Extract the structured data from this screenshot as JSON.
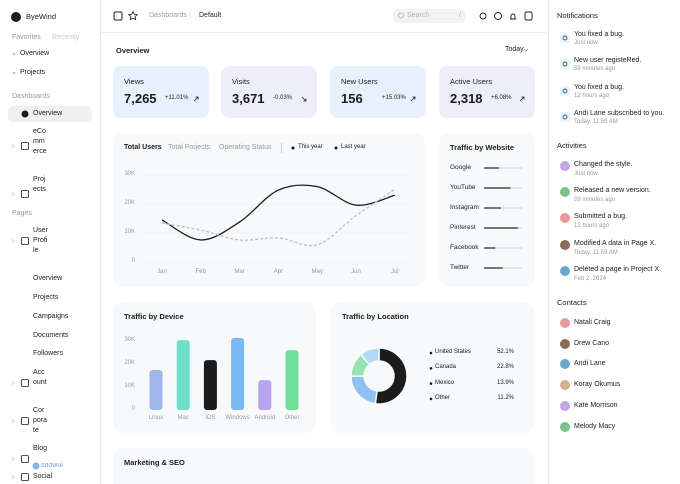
{
  "sidebar": {
    "brand": "ByeWind",
    "tabs": [
      "Favorites",
      "Recently"
    ],
    "favorites": [
      "Overview",
      "Projects"
    ],
    "dashboards_heading": "Dashboards",
    "dashboards": [
      "Overview",
      "eCommerce",
      "Projects"
    ],
    "pages_heading": "Pages",
    "pages": [
      "User Profile",
      "Overview",
      "Projects",
      "Campaigns",
      "Documents",
      "Followers",
      "Account",
      "Corporate",
      "Blog",
      "Social"
    ],
    "watermark": "snowui"
  },
  "topbar": {
    "breadcrumb": [
      "Dashboards",
      "Default"
    ],
    "separator": "/",
    "search": "Search",
    "shortcut": "/"
  },
  "overview": {
    "title": "Overview",
    "period": "Today",
    "stats": [
      {
        "label": "Views",
        "value": "7,265",
        "change": "+11.01%"
      },
      {
        "label": "Visits",
        "value": "3,671",
        "change": "-0.03%"
      },
      {
        "label": "New Users",
        "value": "156",
        "change": "+15.03%"
      },
      {
        "label": "Active Users",
        "value": "2,318",
        "change": "+6.08%"
      }
    ]
  },
  "total_users": {
    "type": "line",
    "tabs": [
      "Total Users",
      "Total Projects",
      "Operating Status"
    ],
    "categories": [
      "Jan",
      "Feb",
      "Mar",
      "Apr",
      "May",
      "Jun",
      "Jul"
    ],
    "series": [
      {
        "name": "This year",
        "color": "#1c1c1c",
        "values": [
          14500,
          7600,
          13800,
          24800,
          26000,
          19600,
          23000
        ]
      },
      {
        "name": "Last year",
        "color": "#a8c5da",
        "values": [
          13400,
          11000,
          7600,
          8300,
          5900,
          16000,
          25000
        ]
      }
    ],
    "ylim": [
      0,
      30000
    ],
    "yticks": [
      0,
      {
        "value": 10000,
        "label": "10K"
      },
      {
        "value": 20000,
        "label": "20K"
      },
      {
        "value": 30000,
        "label": "30K"
      }
    ]
  },
  "traffic_by_website": {
    "type": "bar",
    "title": "Traffic by Website",
    "categories": [
      "Google",
      "YouTube",
      "Instagram",
      "Pinterest",
      "Facebook",
      "Twitter"
    ],
    "values": [
      40,
      70,
      45,
      90,
      30,
      50
    ],
    "xlim": [
      0,
      100
    ]
  },
  "traffic_by_device": {
    "type": "bar",
    "title": "Traffic by Device",
    "categories": [
      "Linux",
      "Mac",
      "iOS",
      "Windows",
      "Android",
      "Other"
    ],
    "values": [
      17400,
      30400,
      21700,
      31300,
      13000,
      26000
    ],
    "colors": [
      "#9fb6ea",
      "#6fe0c7",
      "#1c1c1c",
      "#7ab8f3",
      "#b7a4ef",
      "#71dd9a"
    ],
    "ylim": [
      0,
      30000
    ],
    "yticks": [
      0,
      {
        "value": 10000,
        "label": "10K"
      },
      {
        "value": 20000,
        "label": "20K"
      },
      {
        "value": 30000,
        "label": "30K"
      }
    ]
  },
  "traffic_by_location": {
    "type": "pie",
    "title": "Traffic by Location",
    "categories": [
      "United States",
      "Canada",
      "Mexico",
      "Other"
    ],
    "values": [
      52.1,
      22.8,
      13.9,
      11.2
    ],
    "value_labels": [
      "52.1%",
      "22.8%",
      "13.9%",
      "11.2%"
    ],
    "colors": [
      "#1c1c1c",
      "#92bff4",
      "#95e3b3",
      "#b1d8f5"
    ]
  },
  "marketing_seo": {
    "title": "Marketing & SEO"
  },
  "notifications": {
    "title": "Notifications",
    "items": [
      {
        "text": "You fixed a bug.",
        "time": "Just now"
      },
      {
        "text": "New user registeRed.",
        "time": "59 minutes ago"
      },
      {
        "text": "You fixed a bug.",
        "time": "12 hours ago"
      },
      {
        "text": "Andi Lane subscribed to you.",
        "time": "Today, 11:59 AM"
      }
    ]
  },
  "activities": {
    "title": "Activities",
    "items": [
      {
        "text": "Changed the style.",
        "time": "Just now"
      },
      {
        "text": "Released a new version.",
        "time": "59 minutes ago"
      },
      {
        "text": "Submitted a bug.",
        "time": "12 hours ago"
      },
      {
        "text": "Modified A data in Page X.",
        "time": "Today, 11:59 AM"
      },
      {
        "text": "Deleted a page in Project X.",
        "time": "Feb 2, 2024"
      }
    ]
  },
  "contacts": {
    "title": "Contacts",
    "items": [
      "Natali Craig",
      "Drew Cano",
      "Andi Lane",
      "Koray Okumus",
      "Kate Morrison",
      "Melody Macy"
    ]
  }
}
